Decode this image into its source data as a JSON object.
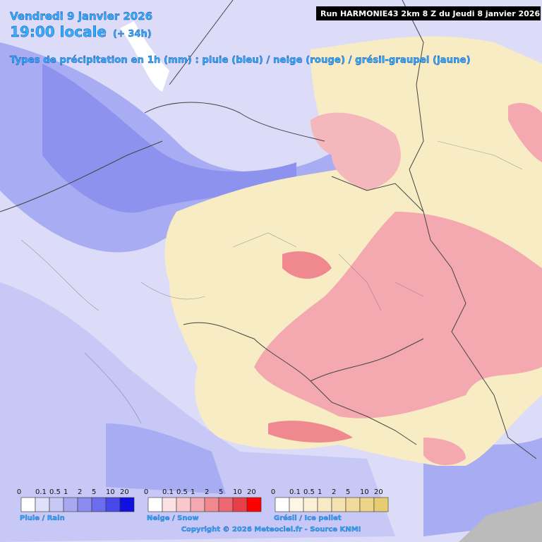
{
  "header": {
    "date": "Vendredi 9 janvier 2026",
    "time": "19:00 locale",
    "lead": "(+ 34h)",
    "subtitle": "Types de précipitation en 1h (mm) : pluie (bleu) / neige (rouge) / grésil-graupel (jaune)",
    "run": "Run HARMONIE43 2km 8 Z du Jeudi 8 janvier 2026"
  },
  "legends": [
    {
      "title": "Pluie / Rain",
      "labels": [
        "0",
        "0.1",
        "0.5",
        "1",
        "2",
        "5",
        "10",
        "20"
      ],
      "colors": [
        "#ffffff",
        "#e0e0fa",
        "#c8c8f6",
        "#a8a8f2",
        "#8c8cf0",
        "#6c6cee",
        "#4848ea",
        "#1010e0"
      ]
    },
    {
      "title": "Neige / Snow",
      "labels": [
        "0",
        "0.1",
        "0.5",
        "1",
        "2",
        "5",
        "10",
        "20"
      ],
      "colors": [
        "#ffffff",
        "#fbe0e4",
        "#f8c8cc",
        "#f4a8b0",
        "#f08890",
        "#ec6870",
        "#e84048",
        "#ff0000"
      ]
    },
    {
      "title": "Grésil / Ice pellet",
      "labels": [
        "0",
        "0.1",
        "0.5",
        "1",
        "2",
        "5",
        "10",
        "20"
      ],
      "colors": [
        "#ffffff",
        "#fdf6e4",
        "#fbf0d4",
        "#f8eac4",
        "#f4e2b0",
        "#f0da9c",
        "#ecd488",
        "#e8cc70"
      ]
    }
  ],
  "footer": "Copyright © 2026 Meteociel.fr - Source KNMI"
}
